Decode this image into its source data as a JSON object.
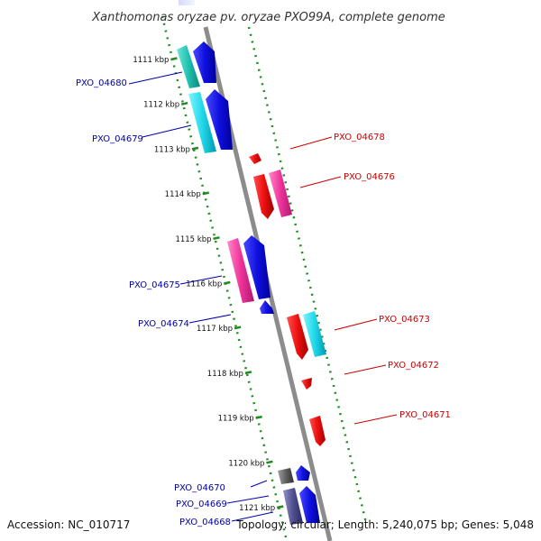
{
  "title": "Xanthomonas oryzae pv. oryzae PXO99A, complete genome",
  "footer": {
    "accession": "Accession: NC_010717",
    "topology": "Topology: circular; Length: 5,240,075 bp; Genes: 5,048"
  },
  "colors": {
    "backbone": "#8c8c8c",
    "tick_dots": "#1f8c1f",
    "forward_label": "#0000aa",
    "reverse_label": "#cc0000",
    "blue": "#1010e0",
    "red": "#ee1010",
    "magenta": "#ee3399",
    "cyan": "#20d8e8",
    "teal": "#20c0b0",
    "gray": "#606060",
    "slate": "#505090"
  },
  "kbp_ticks": [
    "1111 kbp",
    "1112 kbp",
    "1113 kbp",
    "1114 kbp",
    "1115 kbp",
    "1116 kbp",
    "1117 kbp",
    "1118 kbp",
    "1119 kbp",
    "1120 kbp",
    "1121 kbp"
  ],
  "forward_labels": [
    "PXO_04680",
    "PXO_04679",
    "PXO_04675",
    "PXO_04674",
    "PXO_04670",
    "PXO_04669",
    "PXO_04668"
  ],
  "reverse_labels": [
    "PXO_04678",
    "PXO_04676",
    "PXO_04673",
    "PXO_04672",
    "PXO_04671"
  ]
}
